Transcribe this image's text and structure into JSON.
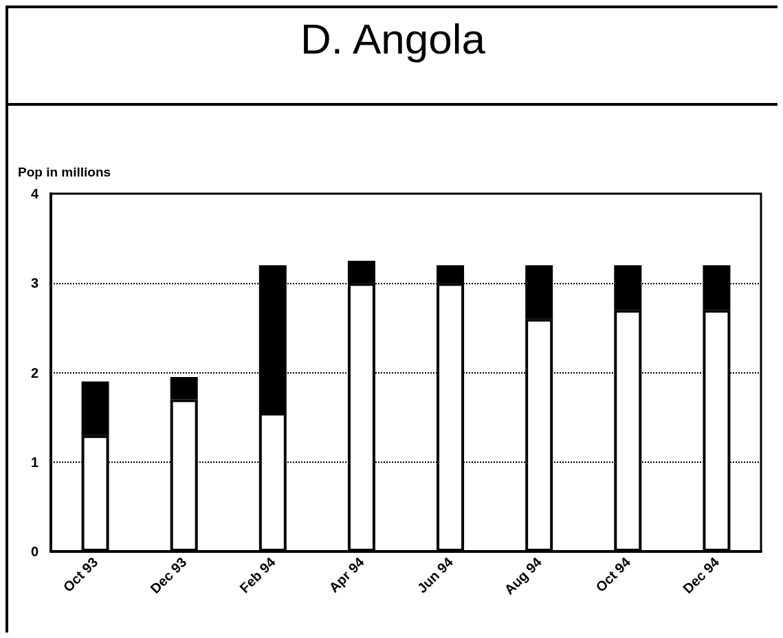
{
  "chart_data": {
    "type": "bar",
    "title": "D. Angola",
    "ylabel": "Pop in millions",
    "categories": [
      "Oct 93",
      "Dec 93",
      "Feb 94",
      "Apr 94",
      "Jun 94",
      "Aug 94",
      "Oct 94",
      "Dec 94"
    ],
    "stacked": true,
    "series": [
      {
        "color": "#ffffff",
        "values": [
          1.3,
          1.7,
          1.55,
          3.0,
          3.0,
          2.6,
          2.7,
          2.7
        ]
      },
      {
        "color": "#000000",
        "values": [
          0.6,
          0.25,
          1.65,
          0.25,
          0.2,
          0.6,
          0.5,
          0.5
        ]
      }
    ],
    "ylim": [
      0,
      4
    ],
    "yticks": [
      0,
      1,
      2,
      3,
      4
    ],
    "grid": "y",
    "line_style": "dotted"
  }
}
